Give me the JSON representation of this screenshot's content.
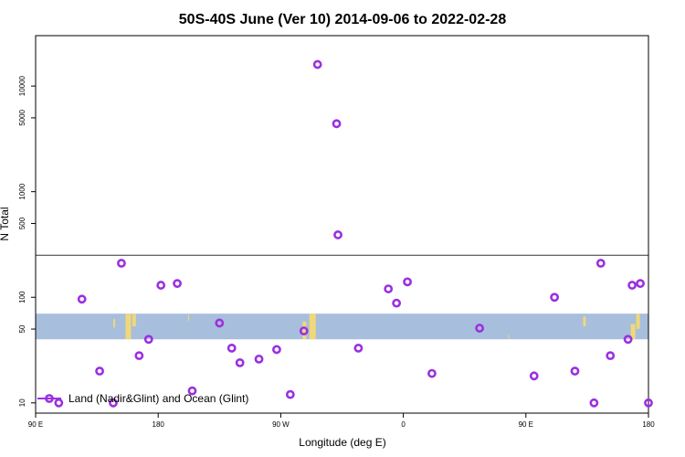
{
  "chart_data": {
    "type": "scatter",
    "title": "50S-40S June (Ver 10)   2014-09-06 to 2022-02-28",
    "xlabel": "Longitude (deg E)",
    "ylabel": "N Total",
    "x_scale": "longitude",
    "x_range_deg_east": [
      90,
      540
    ],
    "x_ticks": [
      {
        "value": 90,
        "label": "90 E"
      },
      {
        "value": 180,
        "label": "180"
      },
      {
        "value": 270,
        "label": "90 W"
      },
      {
        "value": 360,
        "label": "0"
      },
      {
        "value": 450,
        "label": "90 E"
      },
      {
        "value": 540,
        "label": "180"
      }
    ],
    "y_scale": "log",
    "y_range": [
      8,
      30000
    ],
    "y_ticks": [
      10,
      50,
      100,
      500,
      1000,
      5000,
      10000
    ],
    "reference_line_y": 250,
    "land_band": {
      "y_range": [
        40,
        70
      ],
      "color": "#a8bedd",
      "land_color": "#f0d878"
    },
    "series": [
      {
        "name": "Land (Nadir&Glint) and Ocean (Glint)",
        "color": "#9b30e0",
        "x": [
          107,
          124,
          137,
          147,
          153,
          166,
          173,
          182,
          194,
          205,
          225,
          234,
          240,
          254,
          267,
          277,
          287,
          297,
          311,
          312,
          327,
          349,
          355,
          363,
          381,
          416,
          456,
          471,
          486,
          500,
          505,
          512,
          525,
          528,
          534,
          540
        ],
        "y": [
          10,
          96,
          20,
          10,
          210,
          28,
          40,
          130,
          135,
          13,
          57,
          33,
          24,
          26,
          32,
          12,
          48,
          16000,
          4400,
          390,
          33,
          120,
          88,
          140,
          19,
          51,
          18,
          100,
          20,
          10,
          210,
          28,
          40,
          130,
          135,
          10
        ]
      }
    ],
    "legend": {
      "position": "bottom-left"
    },
    "grid": false
  }
}
